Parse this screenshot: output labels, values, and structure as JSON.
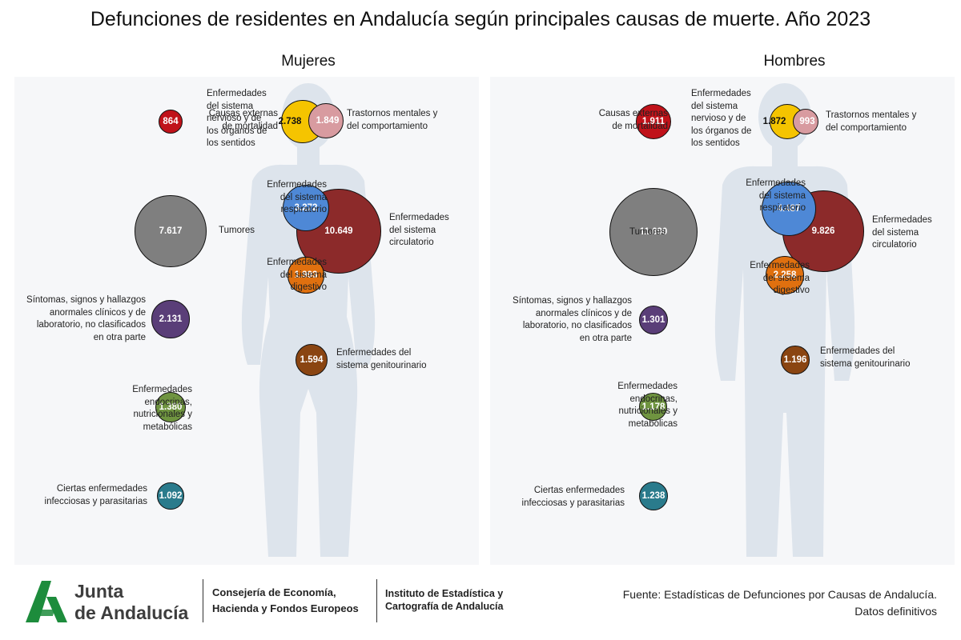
{
  "title": "Defunciones de residentes en Andalucía según principales causas de muerte. Año 2023",
  "colors": {
    "externas": "#c0121a",
    "nervioso": "#f5c400",
    "mentales": "#d89ba0",
    "tumores": "#7f7f7f",
    "respiratorio": "#4e88d6",
    "circulatorio": "#8c2a2a",
    "digestivo": "#e0700f",
    "sintomas": "#5a3e78",
    "genitourinario": "#8a4512",
    "endocrinas": "#6f9440",
    "infecciosas": "#2a7b8c",
    "silhouette": "#dde4ec",
    "logo_green": "#1d8c3c"
  },
  "chart_data": {
    "type": "bubble",
    "title": "Defunciones de residentes en Andalucía según principales causas de muerte. Año 2023",
    "panels": [
      {
        "name": "Mujeres",
        "causes": [
          {
            "key": "externas",
            "label": "Causas externas\nde mortalidad",
            "value": 864,
            "display": "864"
          },
          {
            "key": "nervioso",
            "label": "Enfermedades\ndel sistema\nnervioso y de\nlos órganos de\nlos sentidos",
            "value": 2738,
            "display": "2.738"
          },
          {
            "key": "mentales",
            "label": "Trastornos mentales y\ndel comportamiento",
            "value": 1849,
            "display": "1.849"
          },
          {
            "key": "tumores",
            "label": "Tumores",
            "value": 7617,
            "display": "7.617"
          },
          {
            "key": "respiratorio",
            "label": "Enfermedades\ndel sistema\nrespiratorio",
            "value": 3272,
            "display": "3.272"
          },
          {
            "key": "circulatorio",
            "label": "Enfermedades\ndel sistema\ncirculatorio",
            "value": 10649,
            "display": "10.649"
          },
          {
            "key": "digestivo",
            "label": "Enfermedades\ndel sistema\ndigestivo",
            "value": 1993,
            "display": "1.993"
          },
          {
            "key": "sintomas",
            "label": "Síntomas, signos y hallazgos\nanormales clínicos y de\nlaboratorio, no clasificados\nen otra parte",
            "value": 2131,
            "display": "2.131"
          },
          {
            "key": "genitourinario",
            "label": "Enfermedades del\nsistema genitourinario",
            "value": 1594,
            "display": "1.594"
          },
          {
            "key": "endocrinas",
            "label": "Enfermedades\nendocrinas,\nnutricionales y\nmetabólicas",
            "value": 1380,
            "display": "1.380"
          },
          {
            "key": "infecciosas",
            "label": "Ciertas enfermedades\ninfecciosas y parasitarias",
            "value": 1092,
            "display": "1.092"
          }
        ]
      },
      {
        "name": "Hombres",
        "causes": [
          {
            "key": "externas",
            "label": "Causas externas\nde mortalidad",
            "value": 1911,
            "display": "1.911"
          },
          {
            "key": "nervioso",
            "label": "Enfermedades\ndel sistema\nnervioso y de\nlos órganos de\nlos sentidos",
            "value": 1872,
            "display": "1.872"
          },
          {
            "key": "mentales",
            "label": "Trastornos mentales y\ndel comportamiento",
            "value": 993,
            "display": "993"
          },
          {
            "key": "tumores",
            "label": "Tumores",
            "value": 11690,
            "display": "11.690"
          },
          {
            "key": "respiratorio",
            "label": "Enfermedades\ndel sistema\nrespiratorio",
            "value": 4487,
            "display": "4.487"
          },
          {
            "key": "circulatorio",
            "label": "Enfermedades\ndel sistema\ncirculatorio",
            "value": 9826,
            "display": "9.826"
          },
          {
            "key": "digestivo",
            "label": "Enfermedades\ndel sistema\ndigestivo",
            "value": 2258,
            "display": "2.258"
          },
          {
            "key": "sintomas",
            "label": "Síntomas, signos y hallazgos\nanormales clínicos y de\nlaboratorio, no clasificados\nen otra parte",
            "value": 1301,
            "display": "1.301"
          },
          {
            "key": "genitourinario",
            "label": "Enfermedades del\nsistema genitourinario",
            "value": 1196,
            "display": "1.196"
          },
          {
            "key": "endocrinas",
            "label": "Enfermedades\nendocrinas,\nnutricionales y\nmetabólicas",
            "value": 1178,
            "display": "1.178"
          },
          {
            "key": "infecciosas",
            "label": "Ciertas enfermedades\ninfecciosas y parasitarias",
            "value": 1238,
            "display": "1.238"
          }
        ]
      }
    ]
  },
  "footer": {
    "logo_line1": "Junta",
    "logo_line2": "de Andalucía",
    "org1_line1": "Consejería de Economía,",
    "org1_line2": "Hacienda y Fondos Europeos",
    "org2_line1": "Instituto de Estadística y",
    "org2_line2": "Cartografía de Andalucía",
    "source_line1": "Fuente: Estadísticas de Defunciones por Causas de Andalucía.",
    "source_line2": "Datos definitivos"
  }
}
